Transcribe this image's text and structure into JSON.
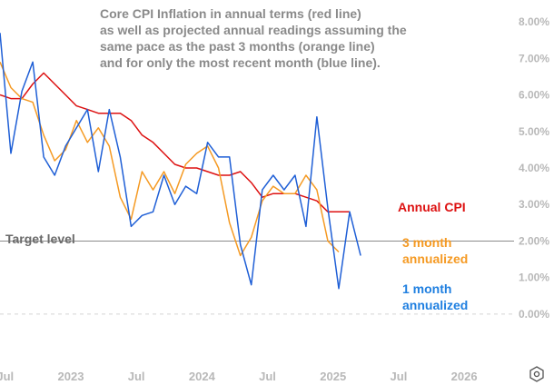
{
  "chart_data": {
    "type": "line",
    "title_lines": [
      "Core CPI Inflation in annual terms (red line)",
      "as well as projected annual readings assuming the",
      "same pace as the past 3 months (orange line)",
      "and for only the most recent month (blue line)."
    ],
    "x_ticks": [
      {
        "label": "Jul",
        "t": 2022.5
      },
      {
        "label": "2023",
        "t": 2023.0
      },
      {
        "label": "Jul",
        "t": 2023.5
      },
      {
        "label": "2024",
        "t": 2024.0
      },
      {
        "label": "Jul",
        "t": 2024.5
      },
      {
        "label": "2025",
        "t": 2025.0
      },
      {
        "label": "Jul",
        "t": 2025.5
      },
      {
        "label": "2026",
        "t": 2026.0
      }
    ],
    "xlim": [
      2022.46,
      2026.38
    ],
    "ylim": [
      -0.4,
      8.4
    ],
    "y_ticks": [
      {
        "label": "8.00%",
        "v": 8
      },
      {
        "label": "7.00%",
        "v": 7
      },
      {
        "label": "6.00%",
        "v": 6
      },
      {
        "label": "5.00%",
        "v": 5
      },
      {
        "label": "4.00%",
        "v": 4
      },
      {
        "label": "3.00%",
        "v": 3
      },
      {
        "label": "2.00%",
        "v": 2
      },
      {
        "label": "1.00%",
        "v": 1
      },
      {
        "label": "0.00%",
        "v": 0
      }
    ],
    "target": {
      "label": "Target level",
      "value": 2.0
    },
    "series": [
      {
        "name": "Annual CPI",
        "color": "#dd1111",
        "values": [
          6.0,
          5.9,
          5.9,
          6.3,
          6.6,
          6.3,
          6.0,
          5.7,
          5.6,
          5.5,
          5.5,
          5.5,
          5.3,
          4.9,
          4.7,
          4.4,
          4.1,
          4.0,
          4.0,
          3.9,
          3.8,
          3.8,
          3.9,
          3.6,
          3.2,
          3.3,
          3.3,
          3.3,
          3.2,
          3.1,
          2.8,
          2.8,
          2.8
        ]
      },
      {
        "name": "3 month annualized",
        "color": "#f59a23",
        "values": [
          6.9,
          6.2,
          5.9,
          5.8,
          4.9,
          4.2,
          4.5,
          5.3,
          4.7,
          5.1,
          4.6,
          3.2,
          2.6,
          3.9,
          3.4,
          3.9,
          3.3,
          4.1,
          4.4,
          4.6,
          4.0,
          2.5,
          1.6,
          2.1,
          3.1,
          3.5,
          3.3,
          3.3,
          3.8,
          3.4,
          2.0,
          1.7
        ]
      },
      {
        "name": "1 month annualized",
        "color": "#1f5fd6",
        "values": [
          7.7,
          4.4,
          6.1,
          6.9,
          4.3,
          3.8,
          4.6,
          5.1,
          5.6,
          3.9,
          5.6,
          4.3,
          2.4,
          2.7,
          2.8,
          3.8,
          3.0,
          3.5,
          3.3,
          4.7,
          4.3,
          4.3,
          1.9,
          0.8,
          3.4,
          3.8,
          3.4,
          3.8,
          2.4,
          5.4,
          2.9,
          0.7,
          2.8,
          1.6
        ]
      }
    ]
  },
  "labels": {
    "annual": "Annual CPI",
    "three_month_l1": "3 month",
    "three_month_l2": "annualized",
    "one_month_l1": "1 month",
    "one_month_l2": "annualized"
  },
  "icons": {
    "settings": "settings-hex-icon"
  }
}
